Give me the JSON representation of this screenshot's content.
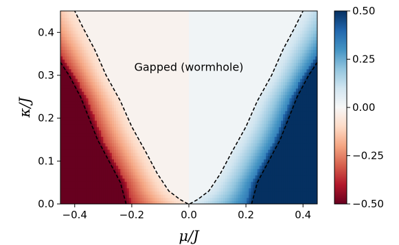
{
  "chart_data": {
    "type": "heatmap",
    "title": "",
    "xlabel": "μ/J",
    "ylabel": "κ/J",
    "xlim": [
      -0.45,
      0.45
    ],
    "ylim": [
      0.0,
      0.45
    ],
    "x_ticks": [
      -0.4,
      -0.2,
      0.0,
      0.2,
      0.4
    ],
    "x_tick_labels": [
      "−0.4",
      "−0.2",
      "0.0",
      "0.2",
      "0.4"
    ],
    "y_ticks": [
      0.0,
      0.1,
      0.2,
      0.3,
      0.4
    ],
    "y_tick_labels": [
      "0.0",
      "0.1",
      "0.2",
      "0.3",
      "0.4"
    ],
    "colormap": "RdBu",
    "colorbar": {
      "range": [
        -0.5,
        0.5
      ],
      "ticks": [
        0.5,
        0.25,
        0.0,
        -0.25,
        -0.5
      ],
      "tick_labels": [
        "0.50",
        "0.25",
        "0.00",
        "−0.25",
        "−0.50"
      ],
      "low_color": "#67001f",
      "mid_color": "#f7f7f7",
      "high_color": "#053061"
    },
    "annotations": [
      {
        "text": "Gapped (wormhole)",
        "x": 0.0,
        "y": 0.32
      }
    ],
    "boundaries": {
      "inner": [
        [
          0.003,
          0.0
        ],
        [
          0.03,
          0.01
        ],
        [
          0.07,
          0.03
        ],
        [
          0.11,
          0.07
        ],
        [
          0.15,
          0.12
        ],
        [
          0.2,
          0.18
        ],
        [
          0.24,
          0.24
        ],
        [
          0.29,
          0.3
        ],
        [
          0.33,
          0.36
        ],
        [
          0.37,
          0.41
        ],
        [
          0.4,
          0.45
        ]
      ],
      "outer": [
        [
          0.22,
          0.0
        ],
        [
          0.24,
          0.05
        ],
        [
          0.28,
          0.1
        ],
        [
          0.32,
          0.15
        ],
        [
          0.35,
          0.2
        ],
        [
          0.38,
          0.25
        ],
        [
          0.42,
          0.3
        ],
        [
          0.45,
          0.33
        ]
      ]
    },
    "grid": false,
    "legend": "colorbar-right"
  }
}
